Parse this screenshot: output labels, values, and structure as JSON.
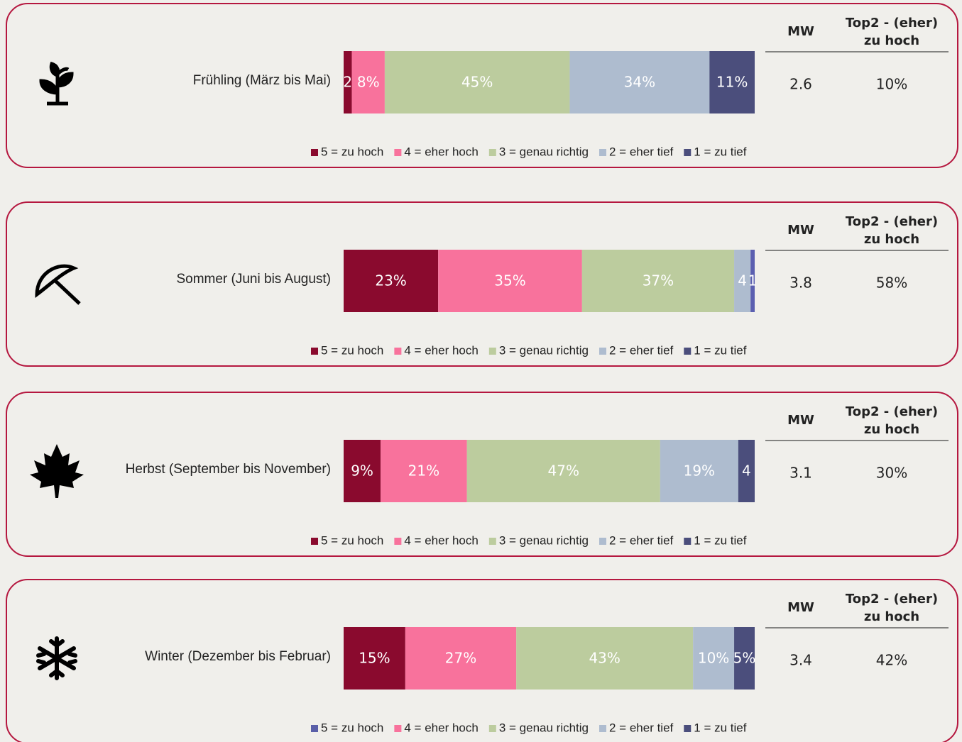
{
  "chart_data": [
    {
      "type": "stacked-bar",
      "categories": [
        "Frühling (März bis Mai)"
      ],
      "xlim": [
        0,
        100
      ],
      "series": [
        {
          "name": "5 = zu hoch",
          "color": "#8a0a2e",
          "values": [
            2
          ],
          "value_labels": [
            "2"
          ]
        },
        {
          "name": "4 = eher hoch",
          "color": "#f8729c",
          "values": [
            8
          ],
          "value_labels": [
            "8%"
          ]
        },
        {
          "name": "3 = genau richtig",
          "color": "#bccc9e",
          "values": [
            45
          ],
          "value_labels": [
            "45%"
          ]
        },
        {
          "name": "2 = eher tief",
          "color": "#aebccf",
          "values": [
            34
          ],
          "value_labels": [
            "34%"
          ]
        },
        {
          "name": "1 = zu tief",
          "color": "#4b4e7c",
          "values": [
            11
          ],
          "value_labels": [
            "11%"
          ]
        }
      ],
      "mw_header": "MW",
      "top2_header": [
        "Top2 - (eher)",
        "zu hoch"
      ],
      "mw": 2.6,
      "top2": "10%"
    },
    {
      "type": "stacked-bar",
      "categories": [
        "Sommer (Juni bis August)"
      ],
      "xlim": [
        0,
        100
      ],
      "series": [
        {
          "name": "5 = zu hoch",
          "color": "#8a0a2e",
          "values": [
            23
          ],
          "value_labels": [
            "23%"
          ]
        },
        {
          "name": "4 = eher hoch",
          "color": "#f8729c",
          "values": [
            35
          ],
          "value_labels": [
            "35%"
          ]
        },
        {
          "name": "3 = genau richtig",
          "color": "#bccc9e",
          "values": [
            37
          ],
          "value_labels": [
            "37%"
          ]
        },
        {
          "name": "2 = eher tief",
          "color": "#aebccf",
          "values": [
            4
          ],
          "value_labels": [
            "4"
          ]
        },
        {
          "name": "1 = zu tief",
          "color": "#5b5fb0",
          "legend_color": "#4b4e7c",
          "values": [
            1
          ],
          "value_labels": [
            "1"
          ]
        }
      ],
      "mw_header": "MW",
      "top2_header": [
        "Top2 - (eher)",
        "zu hoch"
      ],
      "mw": 3.8,
      "top2": "58%"
    },
    {
      "type": "stacked-bar",
      "categories": [
        "Herbst (September bis November)"
      ],
      "xlim": [
        0,
        100
      ],
      "series": [
        {
          "name": "5 = zu hoch",
          "color": "#8a0a2e",
          "values": [
            9
          ],
          "value_labels": [
            "9%"
          ]
        },
        {
          "name": "4 = eher hoch",
          "color": "#f8729c",
          "values": [
            21
          ],
          "value_labels": [
            "21%"
          ]
        },
        {
          "name": "3 = genau richtig",
          "color": "#bccc9e",
          "values": [
            47
          ],
          "value_labels": [
            "47%"
          ]
        },
        {
          "name": "2 = eher tief",
          "color": "#aebccf",
          "values": [
            19
          ],
          "value_labels": [
            "19%"
          ]
        },
        {
          "name": "1 = zu tief",
          "color": "#4b4e7c",
          "values": [
            4
          ],
          "value_labels": [
            "4"
          ]
        }
      ],
      "mw_header": "MW",
      "top2_header": [
        "Top2 - (eher)",
        "zu hoch"
      ],
      "mw": 3.1,
      "top2": "30%"
    },
    {
      "type": "stacked-bar",
      "categories": [
        "Winter (Dezember bis Februar)"
      ],
      "xlim": [
        0,
        100
      ],
      "series": [
        {
          "name": "5 = zu hoch",
          "color": "#8a0a2e",
          "legend_color": "#5a5fa8",
          "values": [
            15
          ],
          "value_labels": [
            "15%"
          ]
        },
        {
          "name": "4 = eher hoch",
          "color": "#f8729c",
          "values": [
            27
          ],
          "value_labels": [
            "27%"
          ]
        },
        {
          "name": "3 = genau richtig",
          "color": "#bccc9e",
          "values": [
            43
          ],
          "value_labels": [
            "43%"
          ]
        },
        {
          "name": "2 = eher tief",
          "color": "#aebccf",
          "values": [
            10
          ],
          "value_labels": [
            "10%"
          ]
        },
        {
          "name": "1 = zu tief",
          "color": "#4b4e7c",
          "values": [
            5
          ],
          "value_labels": [
            "5%"
          ]
        }
      ],
      "mw_header": "MW",
      "top2_header": [
        "Top2 - (eher)",
        "zu hoch"
      ],
      "mw": 3.4,
      "top2": "42%"
    }
  ]
}
